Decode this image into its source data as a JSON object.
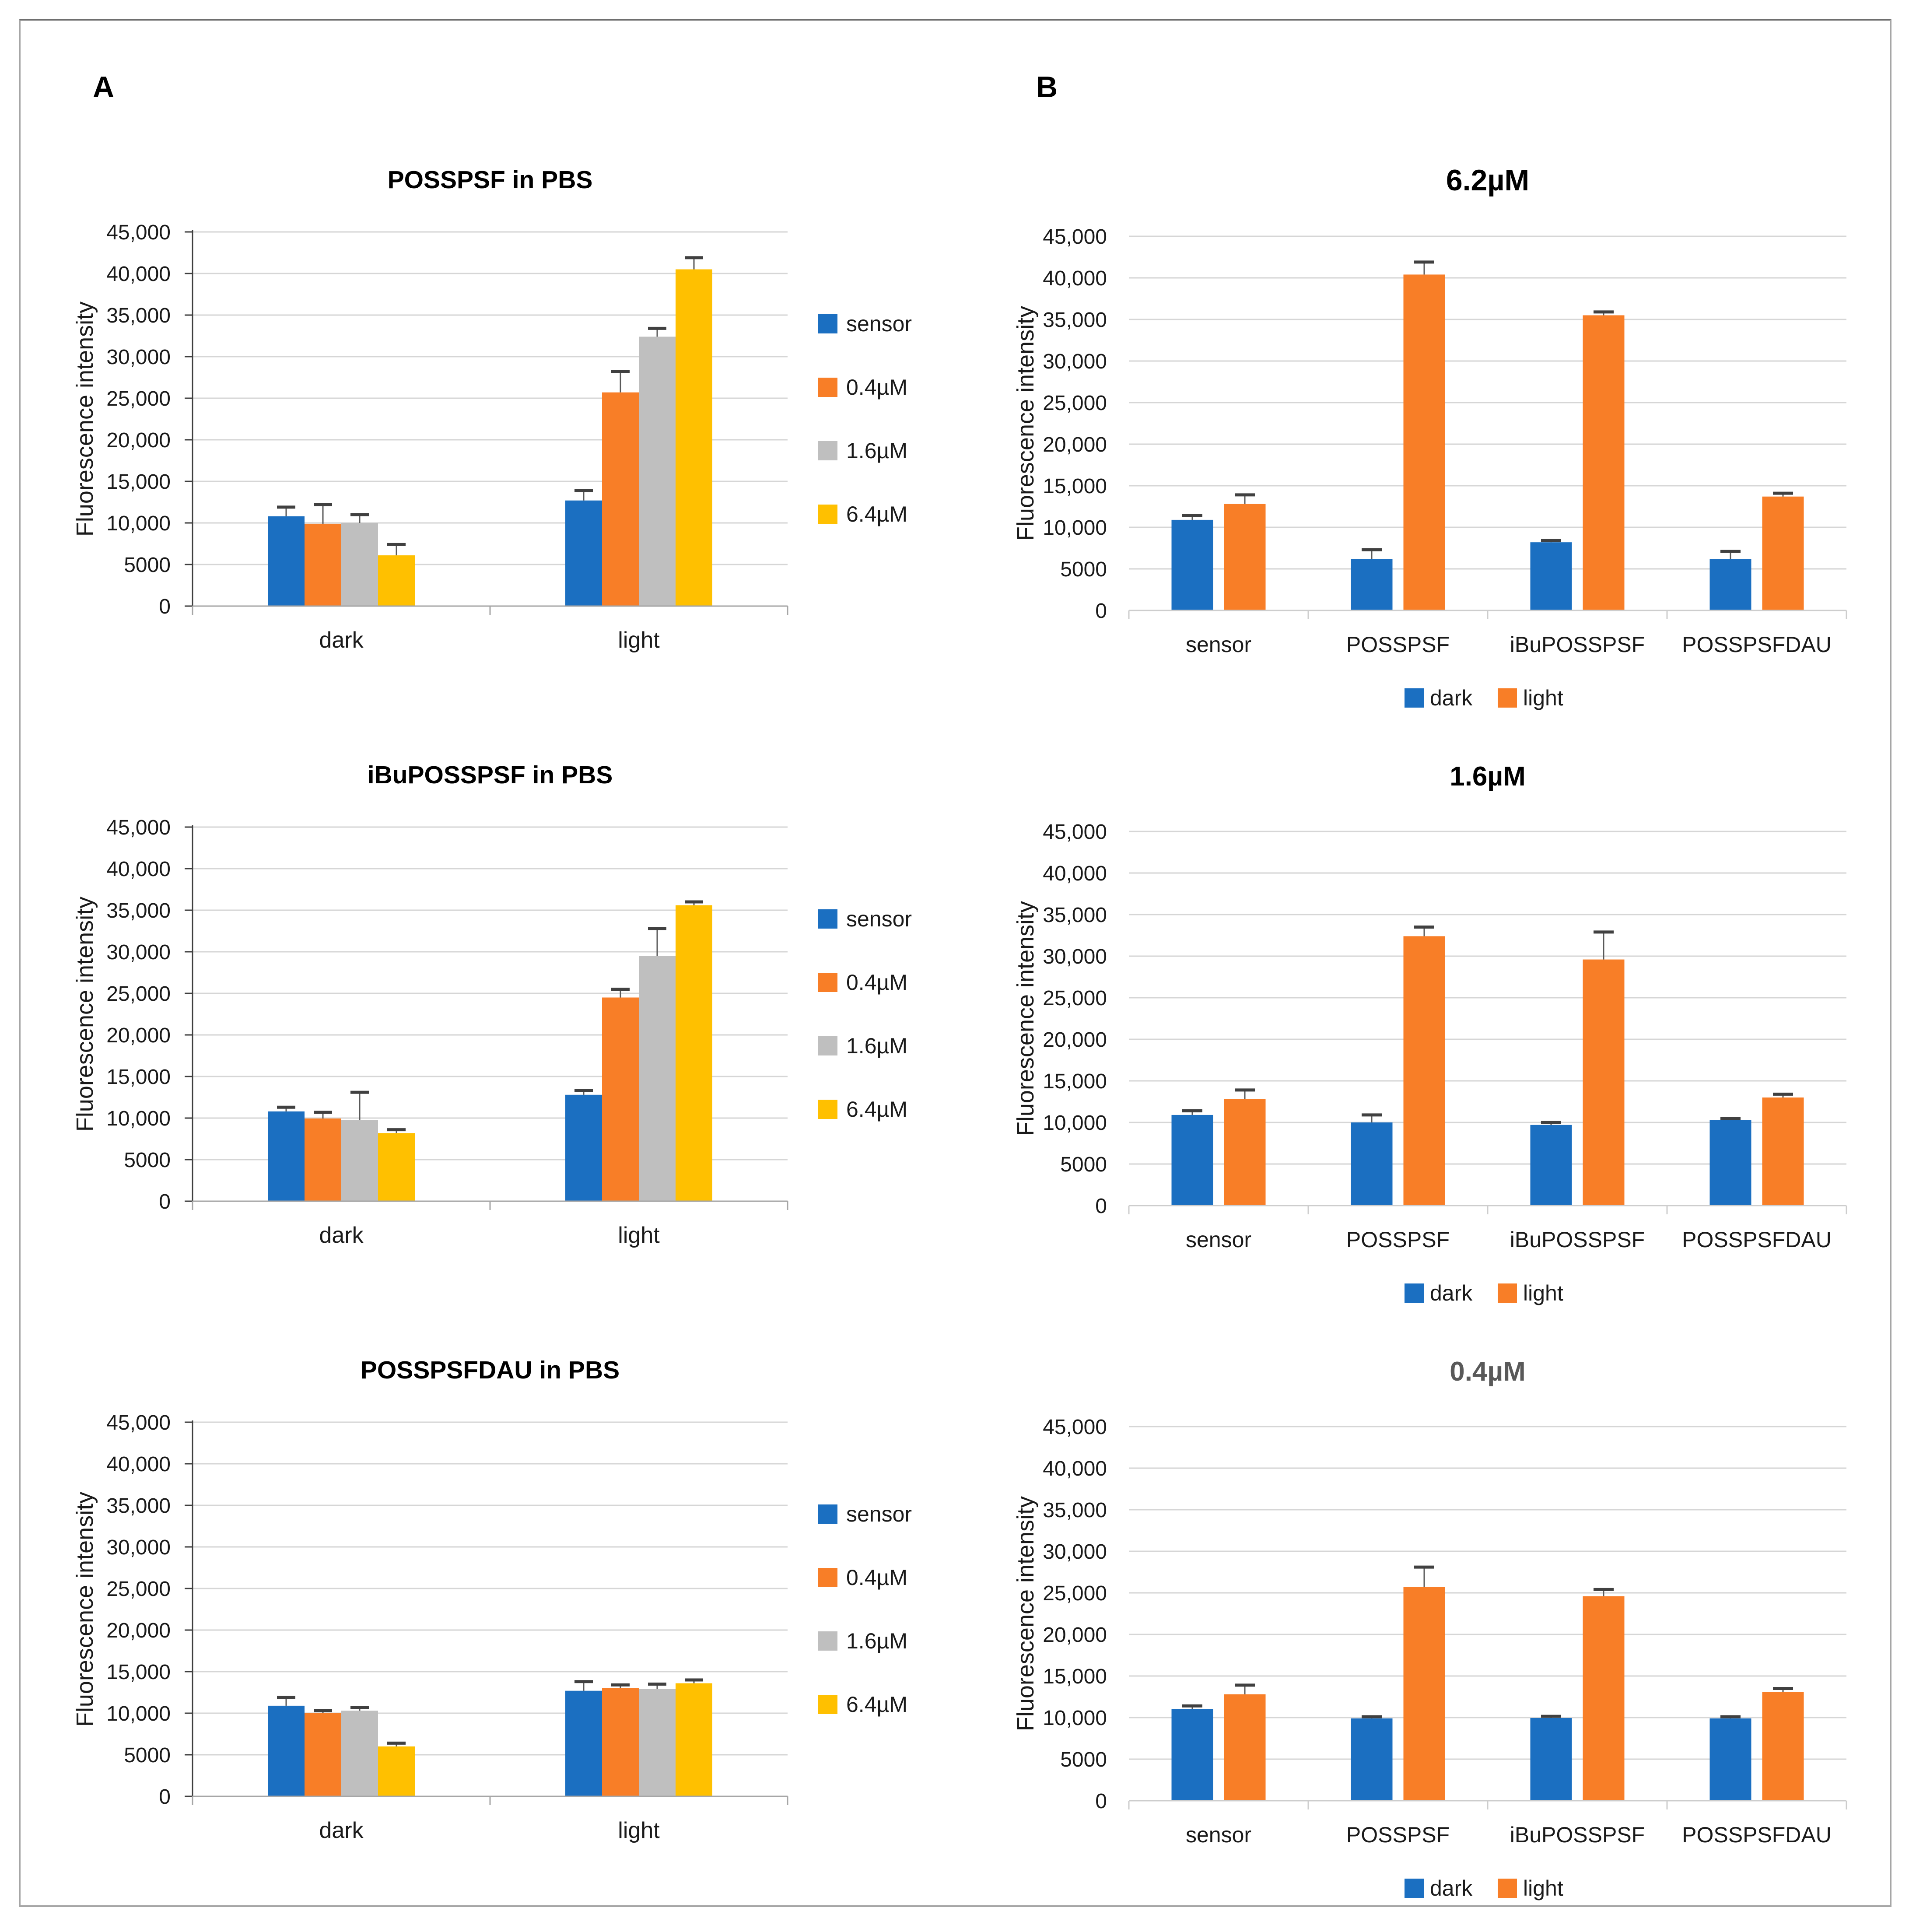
{
  "figure": {
    "panel_a_label": "A",
    "panel_b_label": "B"
  },
  "palette": {
    "blue": "#1B6FC1",
    "orange": "#F87E27",
    "gray": "#BFBFBF",
    "yellow": "#FFC000",
    "grid": "#D6D6D6",
    "axis_dark": "#3F3F3F",
    "axis_light": "#A6A6A6",
    "axis_lighter": "#CDCDCD",
    "error_stem": "#595959",
    "error_cap": "#404040",
    "title_gray": "#595959"
  },
  "chart_data": [
    {
      "id": "posspsf-pbs",
      "panel": "A",
      "type": "bar",
      "title": "POSSPSF in PBS",
      "title_font": "sans-bold",
      "title_color": "#000000",
      "ylabel": "Fluorescence intensity",
      "ylim": [
        0,
        45000
      ],
      "ytick_step": 5000,
      "ytick_labels": [
        "0",
        "5000",
        "10,000",
        "15,000",
        "20,000",
        "25,000",
        "30,000",
        "35,000",
        "40,000",
        "45,000"
      ],
      "grid": true,
      "legend_position": "right",
      "categories": [
        "dark",
        "light"
      ],
      "series": [
        {
          "name": "sensor",
          "color": "#1B6FC1",
          "values": [
            10800,
            12700
          ],
          "errors": [
            1100,
            1200
          ]
        },
        {
          "name": "0.4µM",
          "color": "#F87E27",
          "values": [
            9900,
            25700
          ],
          "errors": [
            2300,
            2500
          ]
        },
        {
          "name": "1.6µM",
          "color": "#BFBFBF",
          "values": [
            10000,
            32400
          ],
          "errors": [
            1000,
            1000
          ]
        },
        {
          "name": "6.4µM",
          "color": "#FFC000",
          "values": [
            6100,
            40500
          ],
          "errors": [
            1300,
            1400
          ]
        }
      ]
    },
    {
      "id": "ibuposspsf-pbs",
      "panel": "A",
      "type": "bar",
      "title": "iBuPOSSPSF in PBS",
      "title_font": "sans-bold",
      "title_color": "#000000",
      "ylabel": "Fluorescence intensity",
      "ylim": [
        0,
        45000
      ],
      "ytick_step": 5000,
      "ytick_labels": [
        "0",
        "5000",
        "10,000",
        "15,000",
        "20,000",
        "25,000",
        "30,000",
        "35,000",
        "40,000",
        "45,000"
      ],
      "grid": true,
      "legend_position": "right",
      "categories": [
        "dark",
        "light"
      ],
      "series": [
        {
          "name": "sensor",
          "color": "#1B6FC1",
          "values": [
            10800,
            12800
          ],
          "errors": [
            500,
            500
          ]
        },
        {
          "name": "0.4µM",
          "color": "#F87E27",
          "values": [
            9950,
            24500
          ],
          "errors": [
            750,
            1000
          ]
        },
        {
          "name": "1.6µM",
          "color": "#BFBFBF",
          "values": [
            9750,
            29500
          ],
          "errors": [
            3350,
            3300
          ]
        },
        {
          "name": "6.4µM",
          "color": "#FFC000",
          "values": [
            8200,
            35600
          ],
          "errors": [
            400,
            400
          ]
        }
      ]
    },
    {
      "id": "posspsfdau-pbs",
      "panel": "A",
      "type": "bar",
      "title": "POSSPSFDAU in PBS",
      "title_font": "sans-bold",
      "title_color": "#000000",
      "ylabel": "Fluorescence intensity",
      "ylim": [
        0,
        45000
      ],
      "ytick_step": 5000,
      "ytick_labels": [
        "0",
        "5000",
        "10,000",
        "15,000",
        "20,000",
        "25,000",
        "30,000",
        "35,000",
        "40,000",
        "45,000"
      ],
      "grid": true,
      "legend_position": "right",
      "categories": [
        "dark",
        "light"
      ],
      "series": [
        {
          "name": "sensor",
          "color": "#1B6FC1",
          "values": [
            10900,
            12700
          ],
          "errors": [
            1000,
            1100
          ]
        },
        {
          "name": "0.4µM",
          "color": "#F87E27",
          "values": [
            10000,
            13000
          ],
          "errors": [
            300,
            400
          ]
        },
        {
          "name": "1.6µM",
          "color": "#BFBFBF",
          "values": [
            10300,
            12900
          ],
          "errors": [
            400,
            600
          ]
        },
        {
          "name": "6.4µM",
          "color": "#FFC000",
          "values": [
            6000,
            13600
          ],
          "errors": [
            400,
            400
          ]
        }
      ]
    },
    {
      "id": "conc-6-2um",
      "panel": "B",
      "type": "bar",
      "title": "6.2µM",
      "title_font": "serif-bold",
      "title_color": "#000000",
      "ylabel": "Fluorescence intensity",
      "ylim": [
        0,
        45000
      ],
      "ytick_step": 5000,
      "ytick_labels": [
        "0",
        "5000",
        "10,000",
        "15,000",
        "20,000",
        "25,000",
        "30,000",
        "35,000",
        "40,000",
        "45,000"
      ],
      "grid": true,
      "legend_position": "bottom",
      "categories": [
        "sensor",
        "POSSPSF",
        "iBuPOSSPSF",
        "POSSPSFDAU"
      ],
      "series": [
        {
          "name": "dark",
          "color": "#1B6FC1",
          "values": [
            10900,
            6200,
            8200,
            6200
          ],
          "errors": [
            500,
            1100,
            200,
            900
          ]
        },
        {
          "name": "light",
          "color": "#F87E27",
          "values": [
            12800,
            40400,
            35500,
            13700
          ],
          "errors": [
            1100,
            1500,
            400,
            400
          ]
        }
      ]
    },
    {
      "id": "conc-1-6um",
      "panel": "B",
      "type": "bar",
      "title": "1.6µM",
      "title_font": "sans-bold",
      "title_color": "#000000",
      "ylabel": "Fluorescence intensity",
      "ylim": [
        0,
        45000
      ],
      "ytick_step": 5000,
      "ytick_labels": [
        "0",
        "5000",
        "10,000",
        "15,000",
        "20,000",
        "25,000",
        "30,000",
        "35,000",
        "40,000",
        "45,000"
      ],
      "grid": true,
      "legend_position": "bottom",
      "categories": [
        "sensor",
        "POSSPSF",
        "iBuPOSSPSF",
        "POSSPSFDAU"
      ],
      "series": [
        {
          "name": "dark",
          "color": "#1B6FC1",
          "values": [
            10900,
            10000,
            9700,
            10300
          ],
          "errors": [
            500,
            900,
            300,
            200
          ]
        },
        {
          "name": "light",
          "color": "#F87E27",
          "values": [
            12800,
            32400,
            29600,
            13000
          ],
          "errors": [
            1100,
            1100,
            3300,
            400
          ]
        }
      ]
    },
    {
      "id": "conc-0-4um",
      "panel": "B",
      "type": "bar",
      "title": "0.4µM",
      "title_font": "sans-bold",
      "title_color": "#595959",
      "ylabel": "Fluorescence intensity",
      "ylim": [
        0,
        45000
      ],
      "ytick_step": 5000,
      "ytick_labels": [
        "0",
        "5000",
        "10,000",
        "15,000",
        "20,000",
        "25,000",
        "30,000",
        "35,000",
        "40,000",
        "45,000"
      ],
      "grid": true,
      "legend_position": "bottom",
      "categories": [
        "sensor",
        "POSSPSF",
        "iBuPOSSPSF",
        "POSSPSFDAU"
      ],
      "series": [
        {
          "name": "dark",
          "color": "#1B6FC1",
          "values": [
            11000,
            9900,
            9950,
            9900
          ],
          "errors": [
            400,
            200,
            200,
            200
          ]
        },
        {
          "name": "light",
          "color": "#F87E27",
          "values": [
            12800,
            25700,
            24600,
            13100
          ],
          "errors": [
            1100,
            2400,
            800,
            400
          ]
        }
      ]
    }
  ]
}
